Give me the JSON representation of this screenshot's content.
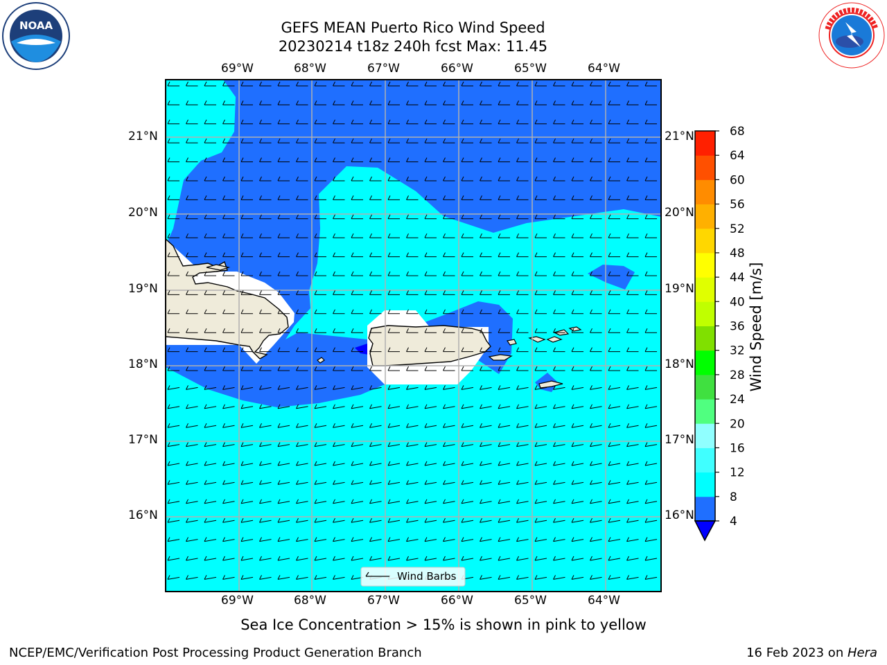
{
  "header": {
    "title_line1": "GEFS MEAN Puerto Rico Wind Speed",
    "title_line2": "20230214 t18z 240h fcst   Max: 11.45"
  },
  "logos": {
    "noaa_text": "NOAA",
    "noaa_ring": "NATIONAL OCEANIC AND ATMOSPHERIC ADMINISTRATION · U.S. DEPARTMENT OF COMMERCE",
    "nws_ring": "NATIONAL WEATHER SERVICE"
  },
  "map": {
    "lon_labels": [
      "69°W",
      "68°W",
      "67°W",
      "66°W",
      "65°W",
      "64°W"
    ],
    "lat_labels": [
      "21°N",
      "20°N",
      "19°N",
      "18°N",
      "17°N",
      "16°N"
    ],
    "legend_label": "Wind Barbs",
    "colors": {
      "ocean_low": "#1f6fff",
      "ocean_mid": "#00ffff",
      "land": "#efebda",
      "gridline": "#b0b0b0"
    }
  },
  "colorbar": {
    "label": "Wind Speed [m/s]",
    "ticks": [
      "4",
      "8",
      "12",
      "16",
      "20",
      "24",
      "28",
      "32",
      "36",
      "40",
      "44",
      "48",
      "52",
      "56",
      "60",
      "64",
      "68"
    ],
    "colors": [
      "#1f6fff",
      "#00ffff",
      "#40ffff",
      "#90ffff",
      "#50ff80",
      "#40e040",
      "#00ff00",
      "#80e000",
      "#c0ff00",
      "#e0ff00",
      "#ffff00",
      "#ffd700",
      "#ffb000",
      "#ff8c00",
      "#ff5000",
      "#ff2000",
      "#ff0000"
    ],
    "under_color": "#0000ff"
  },
  "caption": "Sea Ice Concentration > 15% is shown in pink to yellow",
  "footer": {
    "left": "NCEP/EMC/Verification Post Processing Product Generation Branch",
    "right_prefix": "16 Feb 2023 on ",
    "right_host": "Hera"
  }
}
